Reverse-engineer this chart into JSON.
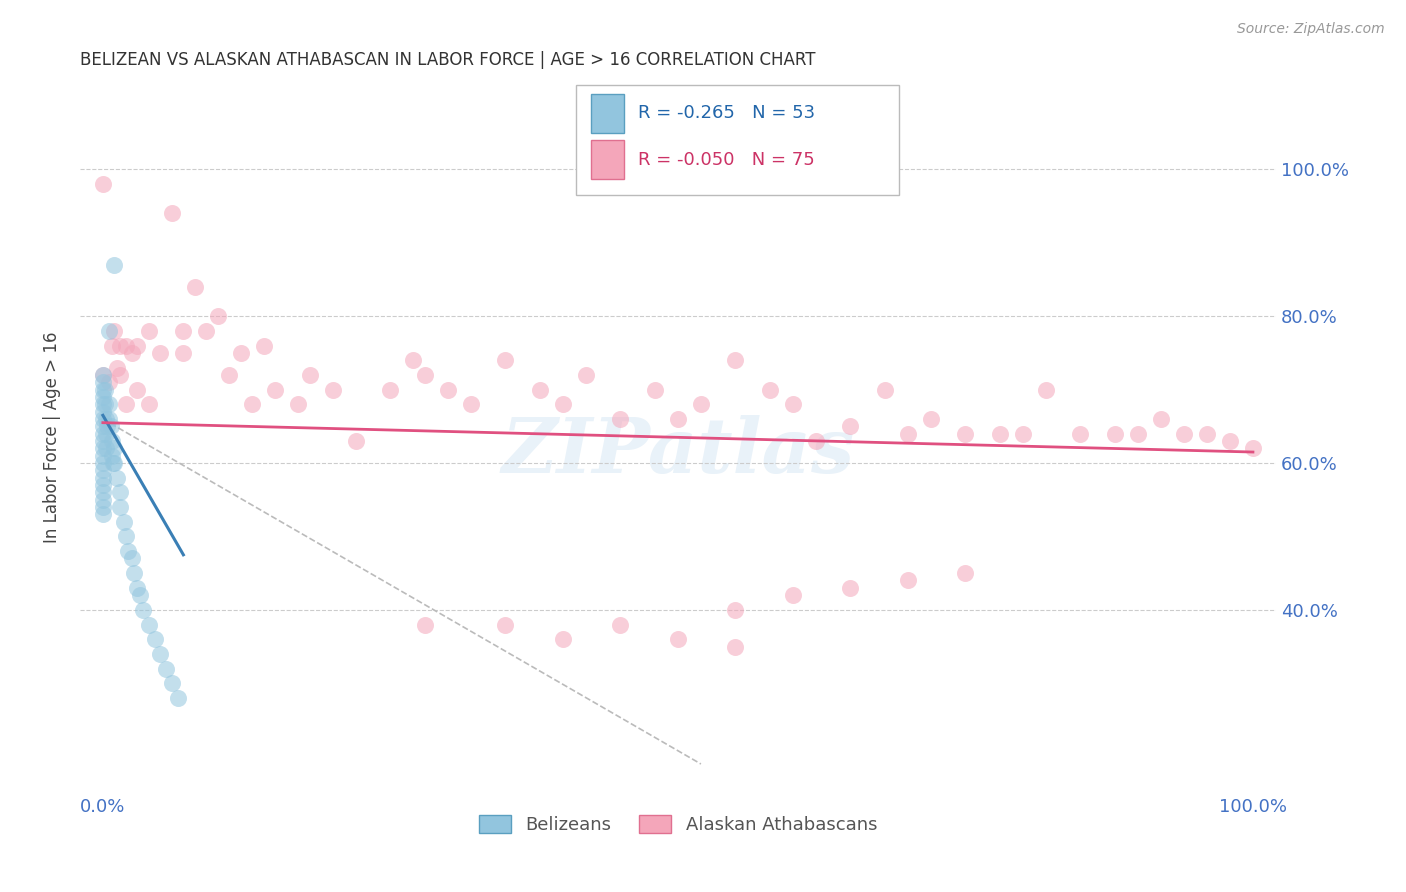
{
  "title": "BELIZEAN VS ALASKAN ATHABASCAN IN LABOR FORCE | AGE > 16 CORRELATION CHART",
  "source": "Source: ZipAtlas.com",
  "ylabel": "In Labor Force | Age > 16",
  "xlim": [
    -0.02,
    1.02
  ],
  "ylim": [
    0.15,
    1.12
  ],
  "blue_R": "-0.265",
  "blue_N": "53",
  "pink_R": "-0.050",
  "pink_N": "75",
  "blue_color": "#92c5de",
  "pink_color": "#f4a6ba",
  "blue_edge_color": "#5a9fc0",
  "pink_edge_color": "#e07090",
  "blue_line_color": "#3a7fb5",
  "pink_line_color": "#e05080",
  "dashed_line_color": "#bbbbbb",
  "background_color": "#ffffff",
  "grid_color": "#cccccc",
  "legend_blue_label": "Belizeans",
  "legend_pink_label": "Alaskan Athabascans",
  "watermark": "ZIPatlas",
  "blue_points_x": [
    0.0,
    0.0,
    0.0,
    0.0,
    0.0,
    0.0,
    0.0,
    0.0,
    0.0,
    0.0,
    0.0,
    0.0,
    0.0,
    0.0,
    0.0,
    0.0,
    0.0,
    0.0,
    0.0,
    0.0,
    0.002,
    0.002,
    0.003,
    0.003,
    0.003,
    0.004,
    0.005,
    0.005,
    0.007,
    0.008,
    0.008,
    0.009,
    0.01,
    0.01,
    0.012,
    0.015,
    0.015,
    0.018,
    0.02,
    0.022,
    0.025,
    0.027,
    0.03,
    0.032,
    0.035,
    0.04,
    0.045,
    0.05,
    0.055,
    0.06,
    0.065,
    0.01,
    0.005
  ],
  "blue_points_y": [
    0.72,
    0.71,
    0.7,
    0.69,
    0.68,
    0.67,
    0.66,
    0.65,
    0.64,
    0.63,
    0.62,
    0.61,
    0.6,
    0.59,
    0.58,
    0.57,
    0.56,
    0.55,
    0.54,
    0.53,
    0.7,
    0.68,
    0.66,
    0.64,
    0.62,
    0.65,
    0.68,
    0.66,
    0.65,
    0.63,
    0.61,
    0.6,
    0.62,
    0.6,
    0.58,
    0.56,
    0.54,
    0.52,
    0.5,
    0.48,
    0.47,
    0.45,
    0.43,
    0.42,
    0.4,
    0.38,
    0.36,
    0.34,
    0.32,
    0.3,
    0.28,
    0.87,
    0.78
  ],
  "pink_points_x": [
    0.0,
    0.0,
    0.005,
    0.008,
    0.01,
    0.012,
    0.015,
    0.015,
    0.02,
    0.02,
    0.025,
    0.03,
    0.03,
    0.04,
    0.04,
    0.05,
    0.06,
    0.07,
    0.07,
    0.08,
    0.09,
    0.1,
    0.11,
    0.12,
    0.13,
    0.14,
    0.15,
    0.17,
    0.18,
    0.2,
    0.22,
    0.25,
    0.27,
    0.28,
    0.3,
    0.32,
    0.35,
    0.38,
    0.4,
    0.42,
    0.45,
    0.48,
    0.5,
    0.52,
    0.55,
    0.58,
    0.6,
    0.62,
    0.65,
    0.68,
    0.7,
    0.72,
    0.75,
    0.78,
    0.8,
    0.82,
    0.85,
    0.88,
    0.9,
    0.92,
    0.94,
    0.96,
    0.98,
    1.0,
    0.28,
    0.35,
    0.4,
    0.5,
    0.55,
    0.45,
    0.55,
    0.6,
    0.65,
    0.7,
    0.75
  ],
  "pink_points_y": [
    0.98,
    0.72,
    0.71,
    0.76,
    0.78,
    0.73,
    0.76,
    0.72,
    0.76,
    0.68,
    0.75,
    0.76,
    0.7,
    0.78,
    0.68,
    0.75,
    0.94,
    0.78,
    0.75,
    0.84,
    0.78,
    0.8,
    0.72,
    0.75,
    0.68,
    0.76,
    0.7,
    0.68,
    0.72,
    0.7,
    0.63,
    0.7,
    0.74,
    0.72,
    0.7,
    0.68,
    0.74,
    0.7,
    0.68,
    0.72,
    0.66,
    0.7,
    0.66,
    0.68,
    0.74,
    0.7,
    0.68,
    0.63,
    0.65,
    0.7,
    0.64,
    0.66,
    0.64,
    0.64,
    0.64,
    0.7,
    0.64,
    0.64,
    0.64,
    0.66,
    0.64,
    0.64,
    0.63,
    0.62,
    0.38,
    0.38,
    0.36,
    0.36,
    0.35,
    0.38,
    0.4,
    0.42,
    0.43,
    0.44,
    0.45
  ],
  "blue_line_x": [
    0.0,
    0.07
  ],
  "blue_line_y": [
    0.665,
    0.475
  ],
  "pink_line_x": [
    0.0,
    1.0
  ],
  "pink_line_y": [
    0.655,
    0.615
  ],
  "dash_line_x": [
    0.0,
    0.52
  ],
  "dash_line_y": [
    0.66,
    0.19
  ]
}
